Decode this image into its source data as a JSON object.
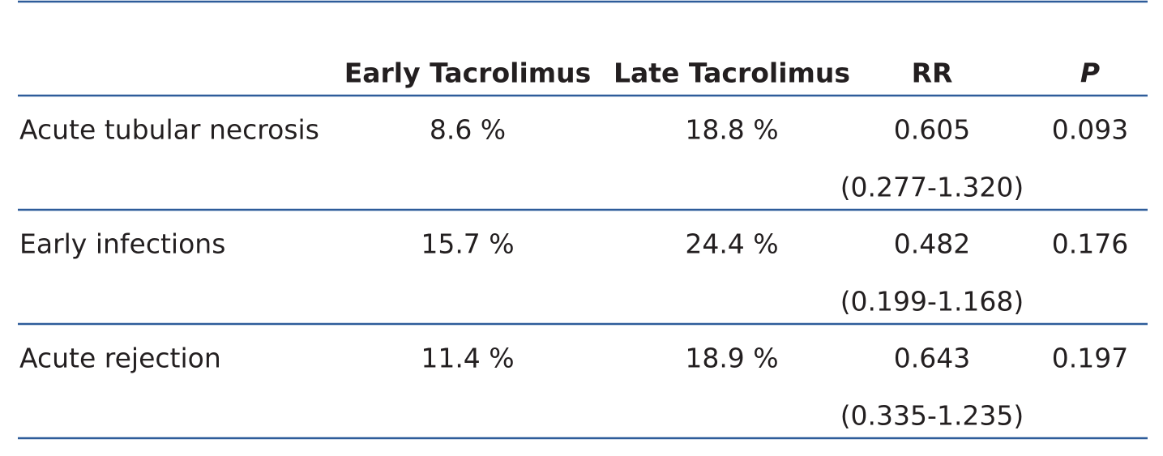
{
  "table": {
    "columns": [
      "Early Tacrolimus",
      "Late Tacrolimus",
      "RR",
      "P"
    ],
    "rows": [
      [
        "Acute tubular necrosis",
        "8.6 %",
        "18.8 %",
        "0.605",
        "(0.277-1.320)",
        "0.093"
      ],
      [
        "Early infections",
        "15.7 %",
        "24.4 %",
        "0.482",
        "(0.199-1.168)",
        "0.176"
      ],
      [
        "Acute rejection",
        "11.4 %",
        "18.9 %",
        "0.643",
        "(0.335-1.235)",
        "0.197"
      ]
    ]
  }
}
